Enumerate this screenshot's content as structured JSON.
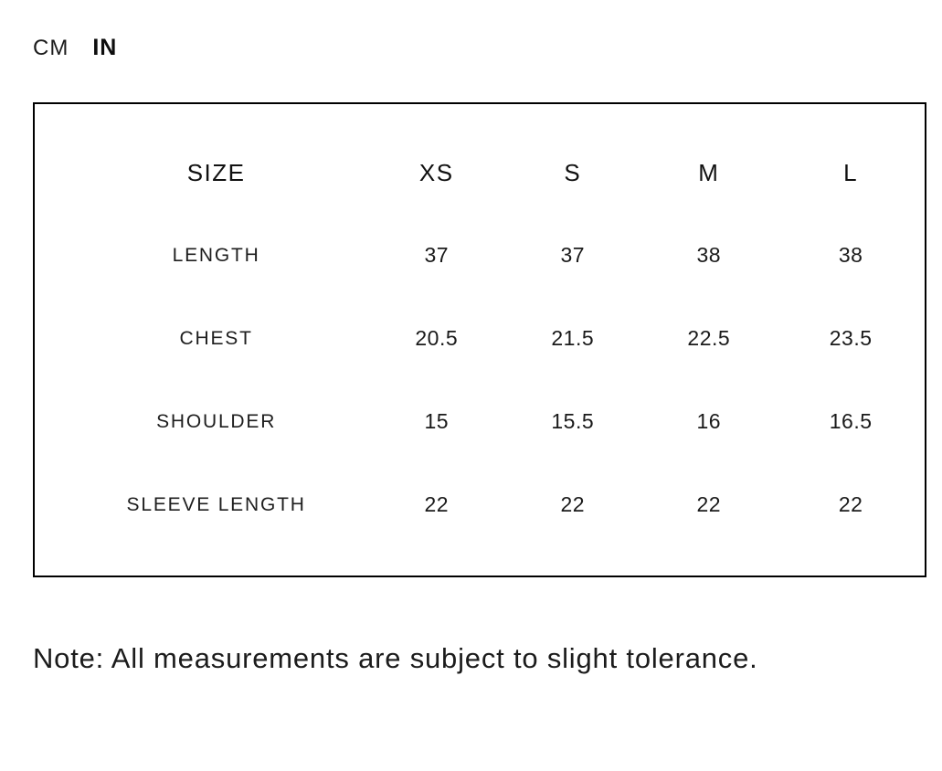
{
  "unit_toggle": {
    "cm_label": "CM",
    "in_label": "IN",
    "selected": "IN"
  },
  "size_chart": {
    "columns": [
      "SIZE",
      "XS",
      "S",
      "M",
      "L"
    ],
    "rows": [
      {
        "label": "LENGTH",
        "values": [
          "37",
          "37",
          "38",
          "38"
        ]
      },
      {
        "label": "CHEST",
        "values": [
          "20.5",
          "21.5",
          "22.5",
          "23.5"
        ]
      },
      {
        "label": "SHOULDER",
        "values": [
          "15",
          "15.5",
          "16",
          "16.5"
        ]
      },
      {
        "label": "SLEEVE LENGTH",
        "values": [
          "22",
          "22",
          "22",
          "22"
        ]
      }
    ]
  },
  "note": "Note: All measurements are subject to slight tolerance.",
  "colors": {
    "background": "#ffffff",
    "text": "#1a1a1a",
    "table_border": "#000000"
  }
}
